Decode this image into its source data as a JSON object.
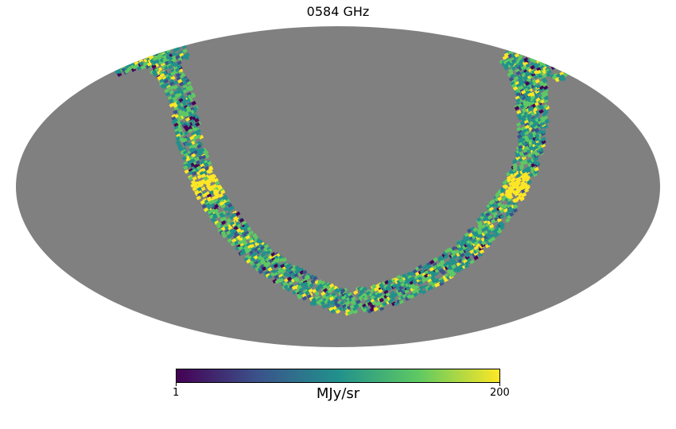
{
  "title": "0584 GHz",
  "colorbar": {
    "min_label": "1",
    "max_label": "200",
    "unit": "MJy/sr",
    "colormap": "viridis",
    "stops": [
      "#440154",
      "#3b528b",
      "#21918c",
      "#5ec962",
      "#fde725"
    ]
  },
  "map": {
    "projection": "mollweide",
    "background_color": "#808080",
    "coverage": "single scan stripe (U-shaped band)"
  }
}
